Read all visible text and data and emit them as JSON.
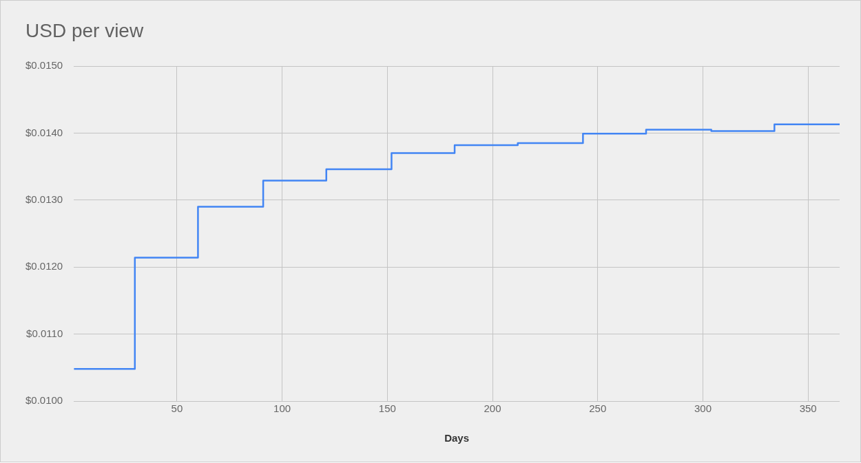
{
  "chart_data": {
    "type": "step",
    "title": "USD per view",
    "xlabel": "Days",
    "x": [
      1,
      30,
      60,
      91,
      121,
      152,
      182,
      212,
      243,
      273,
      304,
      334,
      365
    ],
    "series": [
      {
        "color": "#4285f4",
        "values": [
          0.01048,
          0.01214,
          0.0129,
          0.01329,
          0.01346,
          0.0137,
          0.01382,
          0.01385,
          0.01399,
          0.01405,
          0.01403,
          0.01413,
          0.01413
        ]
      }
    ],
    "xlim": [
      1,
      365
    ],
    "xticks": [
      50,
      100,
      150,
      200,
      250,
      300,
      350
    ],
    "ylim": [
      0.01,
      0.015
    ],
    "yticks": [
      {
        "value": 0.01,
        "label": "$0.0100"
      },
      {
        "value": 0.011,
        "label": "$0.0110"
      },
      {
        "value": 0.012,
        "label": "$0.0120"
      },
      {
        "value": 0.013,
        "label": "$0.0130"
      },
      {
        "value": 0.014,
        "label": "$0.0140"
      },
      {
        "value": 0.015,
        "label": "$0.0150"
      }
    ],
    "grid": true,
    "legend": false,
    "marker": "none",
    "line_style": "solid"
  }
}
